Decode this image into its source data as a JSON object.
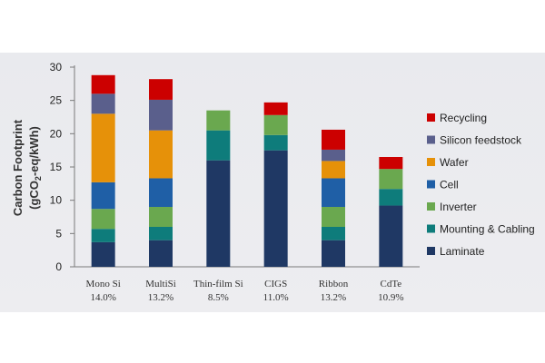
{
  "chart_data": {
    "type": "bar",
    "stacked": true,
    "ylabel_line1": "Carbon Footprint",
    "ylabel_line2_prefix": "(gCO",
    "ylabel_line2_sub": "2",
    "ylabel_line2_suffix": "-eq/kWh)",
    "ylim": [
      0,
      30
    ],
    "yticks": [
      0,
      5,
      10,
      15,
      20,
      25,
      30
    ],
    "categories": [
      "Mono Si",
      "MultiSi",
      "Thin-film Si",
      "CIGS",
      "Ribbon",
      "CdTe"
    ],
    "efficiencies": [
      "14.0%",
      "13.2%",
      "8.5%",
      "11.0%",
      "13.2%",
      "10.9%"
    ],
    "legend_position": "right",
    "series": [
      {
        "name": "Laminate",
        "color": "#1f3864",
        "values": [
          3.7,
          4.0,
          16.0,
          17.5,
          4.0,
          9.2
        ]
      },
      {
        "name": "Mounting & Cabling",
        "color": "#0e7c7b",
        "values": [
          2.0,
          2.0,
          4.5,
          2.3,
          2.0,
          2.5
        ]
      },
      {
        "name": "Inverter",
        "color": "#6aa84f",
        "values": [
          3.0,
          3.0,
          3.0,
          3.0,
          3.0,
          3.0
        ]
      },
      {
        "name": "Cell",
        "color": "#1f5fa6",
        "values": [
          4.0,
          4.3,
          0,
          0,
          4.3,
          0
        ]
      },
      {
        "name": "Wafer",
        "color": "#e69109",
        "values": [
          10.3,
          7.2,
          0,
          0,
          2.6,
          0
        ]
      },
      {
        "name": "Silicon feedstock",
        "color": "#5a5f8c",
        "values": [
          3.0,
          4.6,
          0,
          0,
          1.7,
          0
        ]
      },
      {
        "name": "Recycling",
        "color": "#cc0000",
        "values": [
          2.8,
          3.1,
          0,
          1.9,
          3.0,
          1.8
        ]
      }
    ]
  }
}
